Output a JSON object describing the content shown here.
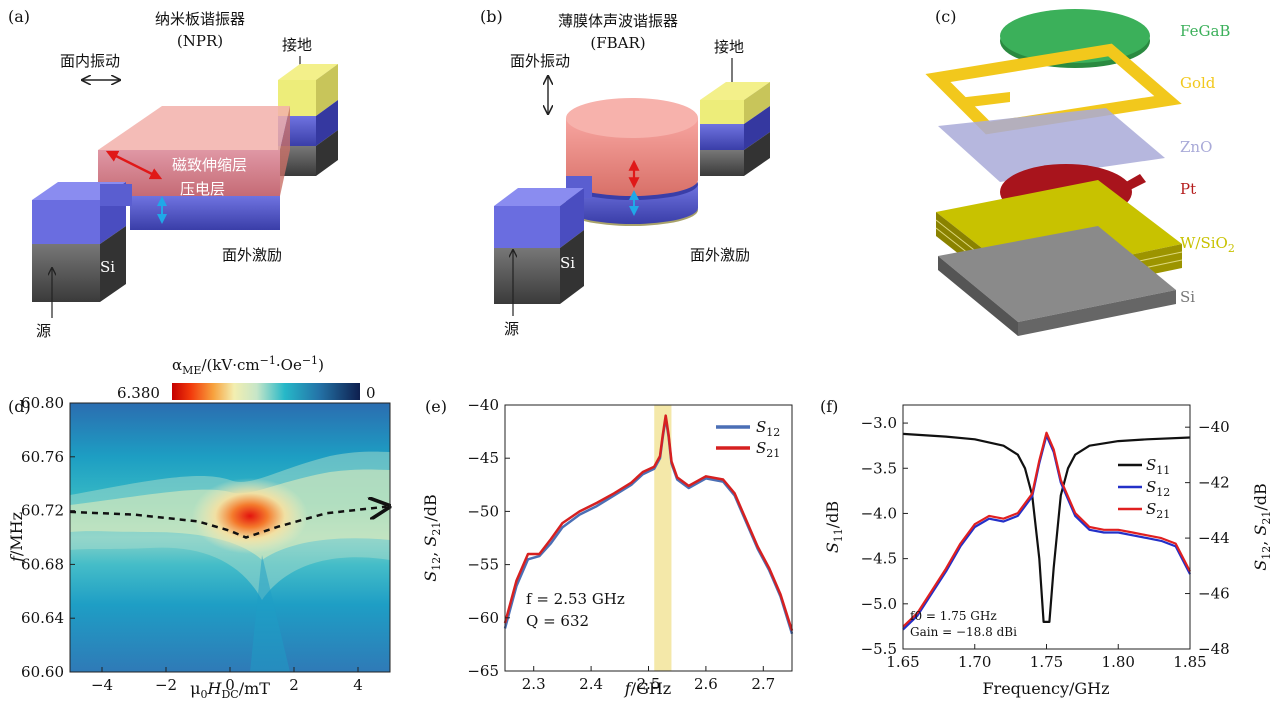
{
  "panel_a": {
    "label": "(a)",
    "title_cn": "纳米板谐振器",
    "title_abbr": "(NPR)",
    "vibration": "面内振动",
    "ground": "接地",
    "magneto_layer": "磁致伸缩层",
    "piezo_layer": "压电层",
    "excitation": "面外激励",
    "si": "Si",
    "source": "源"
  },
  "panel_b": {
    "label": "(b)",
    "title_cn": "薄膜体声波谐振器",
    "title_abbr": "(FBAR)",
    "vibration": "面外振动",
    "ground": "接地",
    "excitation": "面外激励",
    "si": "Si",
    "source": "源"
  },
  "panel_c": {
    "label": "(c)",
    "layers": [
      {
        "name": "FeGaB",
        "color": "#3bb05a"
      },
      {
        "name": "Gold",
        "color": "#f2c81c"
      },
      {
        "name": "ZnO",
        "color": "#a9aad8"
      },
      {
        "name": "Pt",
        "color": "#b51c1c"
      },
      {
        "name": "W/SiO2",
        "color": "#c8c200"
      },
      {
        "name": "Si",
        "color": "#777777"
      }
    ]
  },
  "chart_data": [
    {
      "panel": "(d)",
      "type": "heatmap",
      "colorbar_label": "αME/(kV·cm−1·Oe−1)",
      "colorbar_max": "6.380",
      "colorbar_min": "0",
      "xlabel": "μ0HDC/mT",
      "ylabel": "f/MHz",
      "xlim": [
        -5,
        5
      ],
      "ylim": [
        60.6,
        60.8
      ],
      "xticks": [
        "−4",
        "−2",
        "0",
        "2",
        "4"
      ],
      "yticks": [
        "60.80",
        "60.76",
        "60.72",
        "60.68",
        "60.64",
        "60.60"
      ],
      "peak_path": {
        "x": [
          -5,
          -3,
          -1,
          0,
          0.5,
          1.5,
          3,
          4.9
        ],
        "y": [
          60.719,
          60.717,
          60.712,
          60.705,
          60.7,
          60.708,
          60.718,
          60.723
        ]
      }
    },
    {
      "panel": "(e)",
      "type": "line",
      "xlabel": "f/GHz",
      "ylabel": "S12, S21/dB",
      "xlim": [
        2.25,
        2.75
      ],
      "ylim": [
        -65,
        -40
      ],
      "xticks": [
        "2.3",
        "2.4",
        "2.5",
        "2.6",
        "2.7"
      ],
      "yticks": [
        "−40",
        "−45",
        "−50",
        "−55",
        "−60",
        "−65"
      ],
      "highlight_band": [
        2.51,
        2.54
      ],
      "annotation_f": "f = 2.53 GHz",
      "annotation_q": "Q = 632",
      "series": [
        {
          "name": "S12",
          "color": "#4b6fb5",
          "x": [
            2.25,
            2.27,
            2.29,
            2.31,
            2.33,
            2.35,
            2.38,
            2.41,
            2.44,
            2.47,
            2.49,
            2.51,
            2.52,
            2.525,
            2.53,
            2.535,
            2.54,
            2.55,
            2.57,
            2.6,
            2.63,
            2.65,
            2.67,
            2.69,
            2.71,
            2.73,
            2.75
          ],
          "y": [
            -61,
            -57,
            -54.5,
            -54.2,
            -53,
            -51.5,
            -50.3,
            -49.5,
            -48.5,
            -47.5,
            -46.5,
            -46,
            -45,
            -43,
            -41.2,
            -43,
            -45.5,
            -47,
            -47.8,
            -46.9,
            -47.2,
            -48.5,
            -51,
            -53.5,
            -55.5,
            -58,
            -61.5
          ]
        },
        {
          "name": "S21",
          "color": "#d62020",
          "x": [
            2.25,
            2.27,
            2.29,
            2.31,
            2.33,
            2.35,
            2.38,
            2.41,
            2.44,
            2.47,
            2.49,
            2.51,
            2.52,
            2.525,
            2.53,
            2.535,
            2.54,
            2.55,
            2.57,
            2.6,
            2.63,
            2.65,
            2.67,
            2.69,
            2.71,
            2.73,
            2.75
          ],
          "y": [
            -60.5,
            -56.5,
            -54,
            -54,
            -52.6,
            -51.1,
            -50,
            -49.2,
            -48.3,
            -47.3,
            -46.3,
            -45.8,
            -44.8,
            -42.8,
            -41,
            -42.8,
            -45.3,
            -46.8,
            -47.6,
            -46.7,
            -47.0,
            -48.3,
            -50.8,
            -53.3,
            -55.3,
            -57.8,
            -61.2
          ]
        }
      ]
    },
    {
      "panel": "(f)",
      "type": "line",
      "xlabel": "Frequency/GHz",
      "ylabel_left": "S11/dB",
      "ylabel_right": "S12, S21/dB",
      "xlim": [
        1.65,
        1.85
      ],
      "ylim_left": [
        -5.5,
        -2.8
      ],
      "ylim_right": [
        -48,
        -39.2
      ],
      "xticks": [
        "1.65",
        "1.70",
        "1.75",
        "1.80",
        "1.85"
      ],
      "yticks_left": [
        "−3.0",
        "−3.5",
        "−4.0",
        "−4.5",
        "−5.0",
        "−5.5"
      ],
      "yticks_right": [
        "−40",
        "−42",
        "−44",
        "−46",
        "−48"
      ],
      "annotation_f0": "f0 = 1.75 GHz",
      "annotation_gain": "Gain = −18.8 dBi",
      "series": [
        {
          "name": "S11",
          "axis": "left",
          "color": "#111111",
          "x": [
            1.65,
            1.68,
            1.7,
            1.72,
            1.73,
            1.735,
            1.74,
            1.745,
            1.748,
            1.752,
            1.755,
            1.76,
            1.765,
            1.77,
            1.78,
            1.8,
            1.82,
            1.85
          ],
          "y": [
            -3.12,
            -3.15,
            -3.18,
            -3.25,
            -3.35,
            -3.5,
            -3.8,
            -4.5,
            -5.2,
            -5.2,
            -4.6,
            -3.8,
            -3.5,
            -3.35,
            -3.25,
            -3.2,
            -3.18,
            -3.16
          ]
        },
        {
          "name": "S12",
          "axis": "right",
          "color": "#2330c8",
          "x": [
            1.65,
            1.66,
            1.67,
            1.68,
            1.69,
            1.7,
            1.71,
            1.72,
            1.73,
            1.74,
            1.745,
            1.75,
            1.755,
            1.76,
            1.77,
            1.78,
            1.79,
            1.8,
            1.81,
            1.82,
            1.83,
            1.84,
            1.85
          ],
          "y": [
            -47.3,
            -46.8,
            -46,
            -45.2,
            -44.3,
            -43.6,
            -43.3,
            -43.4,
            -43.2,
            -42.5,
            -41.3,
            -40.3,
            -40.9,
            -42,
            -43.2,
            -43.7,
            -43.8,
            -43.8,
            -43.9,
            -44,
            -44.1,
            -44.3,
            -45.3
          ]
        },
        {
          "name": "S21",
          "axis": "right",
          "color": "#e02020",
          "x": [
            1.65,
            1.66,
            1.67,
            1.68,
            1.69,
            1.7,
            1.71,
            1.72,
            1.73,
            1.74,
            1.745,
            1.75,
            1.755,
            1.76,
            1.77,
            1.78,
            1.79,
            1.8,
            1.81,
            1.82,
            1.83,
            1.84,
            1.85
          ],
          "y": [
            -47.2,
            -46.7,
            -45.9,
            -45.1,
            -44.2,
            -43.5,
            -43.2,
            -43.3,
            -43.1,
            -42.4,
            -41.2,
            -40.2,
            -40.8,
            -41.9,
            -43.1,
            -43.6,
            -43.7,
            -43.7,
            -43.8,
            -43.9,
            -44.0,
            -44.2,
            -45.2
          ]
        }
      ]
    }
  ]
}
